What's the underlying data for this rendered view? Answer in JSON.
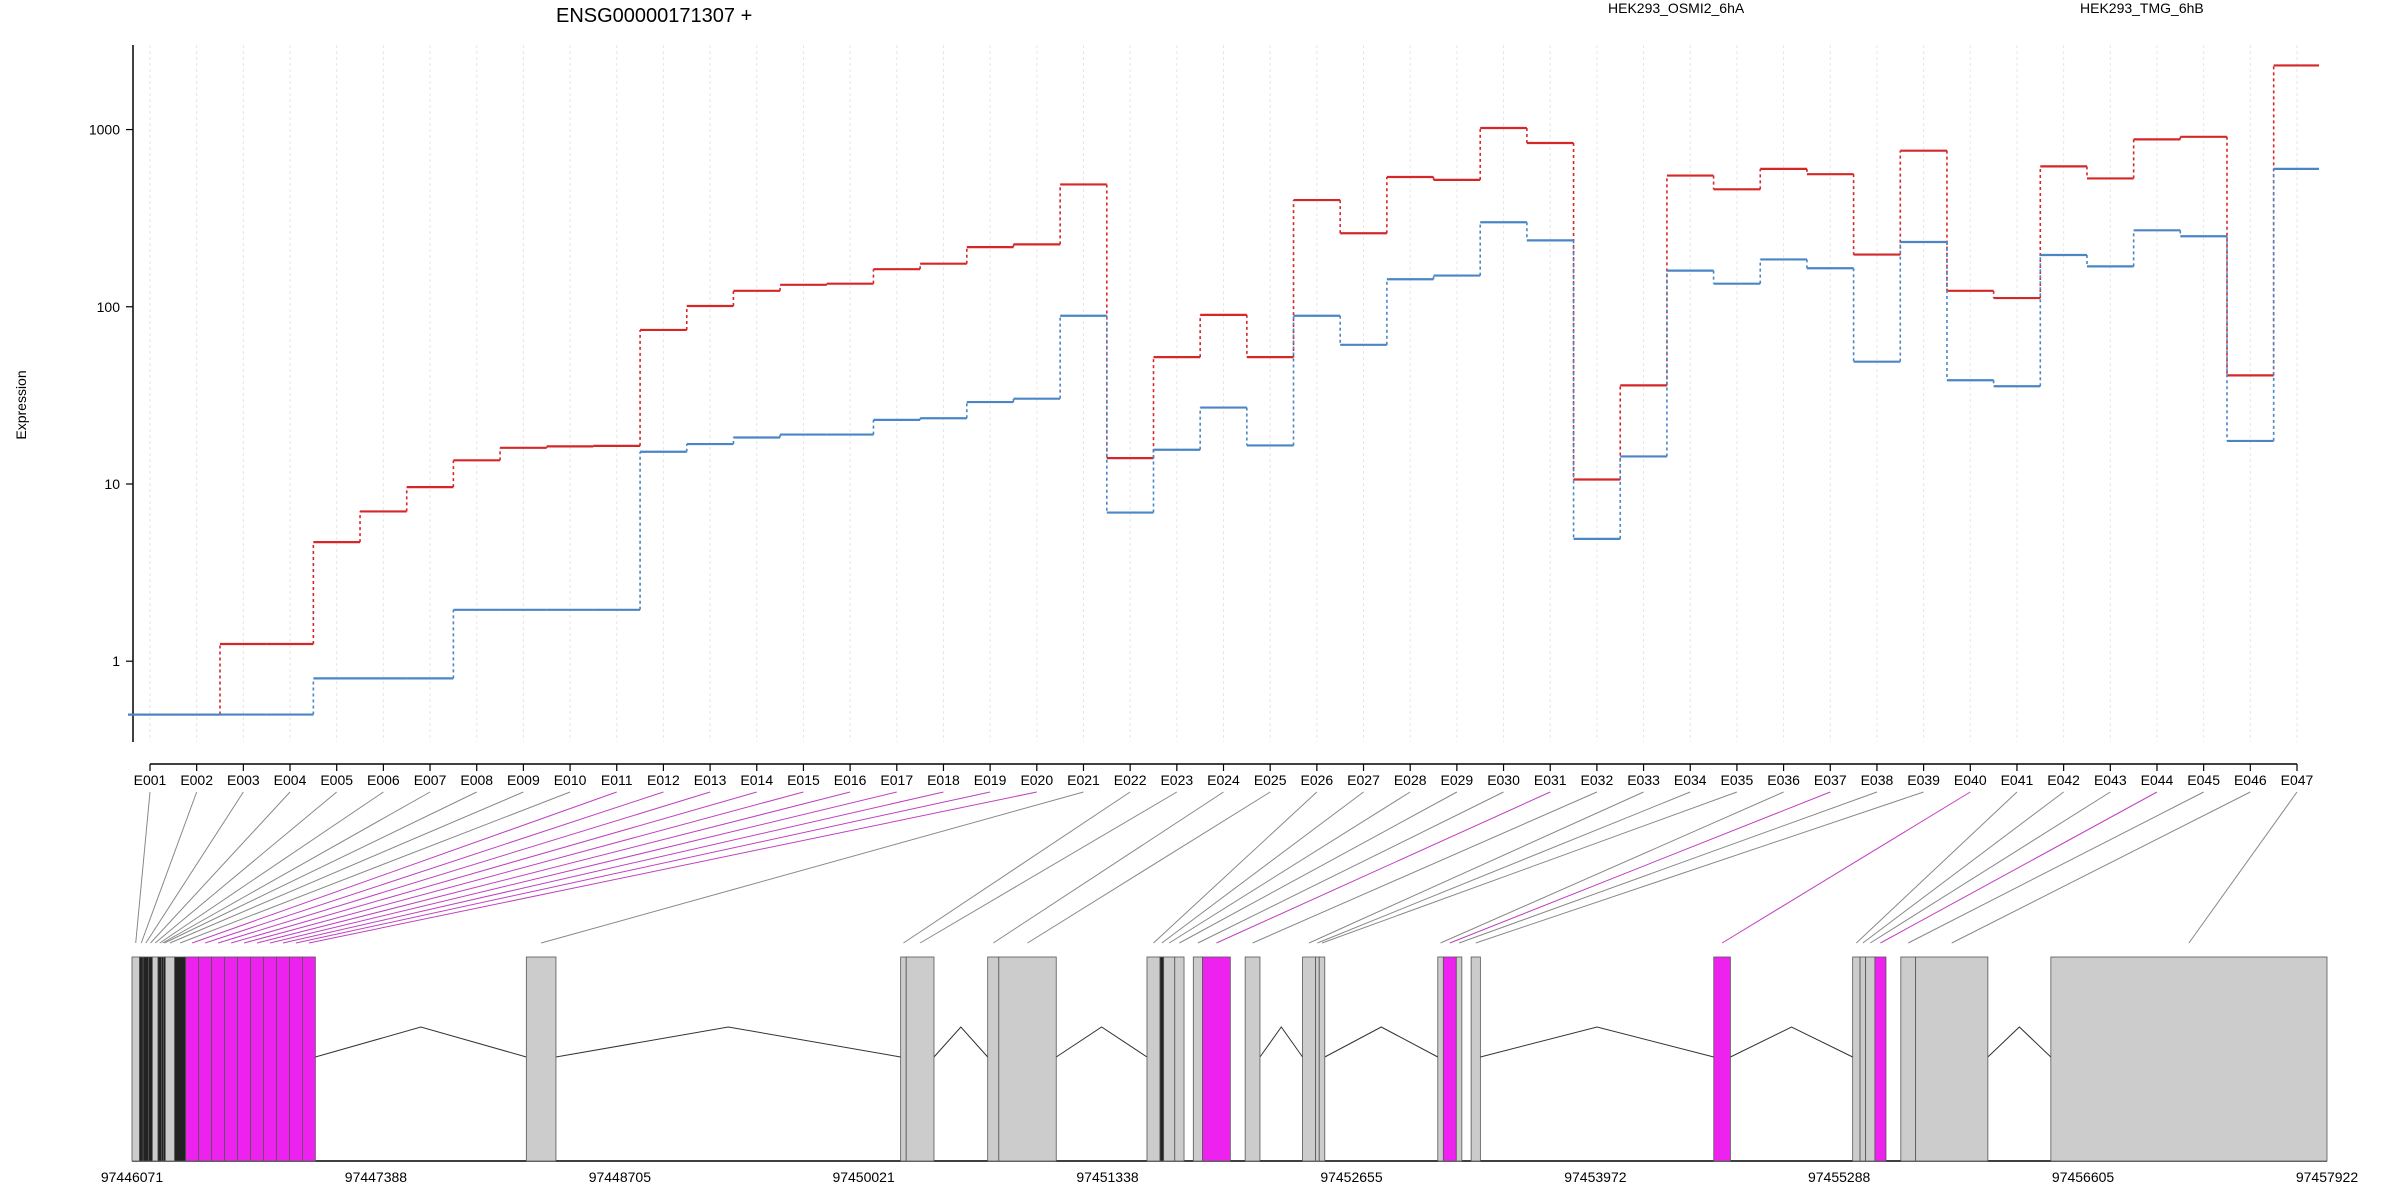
{
  "chart_data": {
    "type": "line",
    "title": "ENSG00000171307 +",
    "ylabel": "Expression",
    "yscale": "log",
    "ylim": [
      0.35,
      3000
    ],
    "yticks": [
      1,
      10,
      100,
      1000
    ],
    "categories": [
      "E001",
      "E002",
      "E003",
      "E004",
      "E005",
      "E006",
      "E007",
      "E008",
      "E009",
      "E010",
      "E011",
      "E012",
      "E013",
      "E014",
      "E015",
      "E016",
      "E017",
      "E018",
      "E019",
      "E020",
      "E021",
      "E022",
      "E023",
      "E024",
      "E025",
      "E026",
      "E027",
      "E028",
      "E029",
      "E030",
      "E031",
      "E032",
      "E033",
      "E034",
      "E035",
      "E036",
      "E037",
      "E038",
      "E039",
      "E040",
      "E041",
      "E042",
      "E043",
      "E044",
      "E045",
      "E046",
      "E047"
    ],
    "series": [
      {
        "name": "HEK293_OSMI2_6hA",
        "color": "#d62728",
        "values": [
          0.5,
          0.5,
          1.25,
          1.25,
          4.7,
          7,
          9.6,
          13.6,
          16,
          16.3,
          16.4,
          74,
          101,
          123,
          133,
          135,
          163,
          175,
          217,
          225,
          490,
          14,
          52,
          90,
          52,
          400,
          260,
          540,
          520,
          1020,
          840,
          10.6,
          36,
          550,
          460,
          600,
          560,
          197,
          760,
          123,
          112,
          620,
          530,
          880,
          910,
          41,
          2300
        ]
      },
      {
        "name": "HEK293_TMG_6hB",
        "color": "#4a86c5",
        "values": [
          0.5,
          0.5,
          0.5,
          0.5,
          0.8,
          0.8,
          0.8,
          1.95,
          1.95,
          1.95,
          1.95,
          15.2,
          16.8,
          18.3,
          19,
          19,
          23,
          23.5,
          29,
          30.3,
          89,
          6.9,
          15.6,
          27,
          16.5,
          89,
          61,
          143,
          150,
          300,
          237,
          4.9,
          14.3,
          160,
          135,
          185,
          165,
          49,
          232,
          38.5,
          35.6,
          196,
          169,
          270,
          250,
          17.5,
          600
        ]
      }
    ],
    "gene_model": {
      "coordinate_ticks": [
        "97446071",
        "97447388",
        "97448705",
        "97450021",
        "97451338",
        "97452655",
        "97453972",
        "97455288",
        "97456605",
        "97457922"
      ],
      "range": [
        97446071,
        97457922
      ],
      "exons": [
        [
          97446071,
          97446111,
          "grey"
        ],
        [
          97446111,
          97446131,
          "black"
        ],
        [
          97446131,
          97446161,
          "black"
        ],
        [
          97446161,
          97446181,
          "black"
        ],
        [
          97446181,
          97446211,
          "grey"
        ],
        [
          97446211,
          97446231,
          "black"
        ],
        [
          97446231,
          97446241,
          "black"
        ],
        [
          97446241,
          97446251,
          "black"
        ],
        [
          97446251,
          97446301,
          "grey"
        ],
        [
          97446301,
          97446361,
          "black"
        ],
        [
          97446361,
          97446431,
          "magenta"
        ],
        [
          97446431,
          97446501,
          "magenta"
        ],
        [
          97446501,
          97446571,
          "magenta"
        ],
        [
          97446571,
          97446641,
          "magenta"
        ],
        [
          97446641,
          97446711,
          "magenta"
        ],
        [
          97446711,
          97446781,
          "magenta"
        ],
        [
          97446781,
          97446851,
          "magenta"
        ],
        [
          97446851,
          97446921,
          "magenta"
        ],
        [
          97446921,
          97446991,
          "magenta"
        ],
        [
          97446991,
          97447061,
          "magenta"
        ],
        [
          97448200,
          97448360,
          "grey"
        ],
        [
          97450221,
          97450251,
          "grey"
        ],
        [
          97450251,
          97450401,
          "grey"
        ],
        [
          97450691,
          97450751,
          "grey"
        ],
        [
          97450751,
          97451061,
          "grey"
        ],
        [
          97451551,
          97451621,
          "grey"
        ],
        [
          97451621,
          97451641,
          "black"
        ],
        [
          97451641,
          97451701,
          "grey"
        ],
        [
          97451701,
          97451751,
          "grey"
        ],
        [
          97451801,
          97451851,
          "grey"
        ],
        [
          97451851,
          97452001,
          "magenta"
        ],
        [
          97452081,
          97452161,
          "grey"
        ],
        [
          97452391,
          97452461,
          "grey"
        ],
        [
          97452461,
          97452481,
          "grey"
        ],
        [
          97452481,
          97452511,
          "grey"
        ],
        [
          97453121,
          97453151,
          "grey"
        ],
        [
          97453151,
          97453221,
          "magenta"
        ],
        [
          97453221,
          97453251,
          "grey"
        ],
        [
          97453301,
          97453351,
          "grey"
        ],
        [
          97454611,
          97454701,
          "magenta"
        ],
        [
          97455361,
          97455401,
          "grey"
        ],
        [
          97455401,
          97455431,
          "grey"
        ],
        [
          97455431,
          97455481,
          "grey"
        ],
        [
          97455481,
          97455541,
          "magenta"
        ],
        [
          97455621,
          97455701,
          "grey"
        ],
        [
          97455701,
          97456091,
          "grey"
        ],
        [
          97456431,
          97457922,
          "grey"
        ]
      ]
    }
  }
}
